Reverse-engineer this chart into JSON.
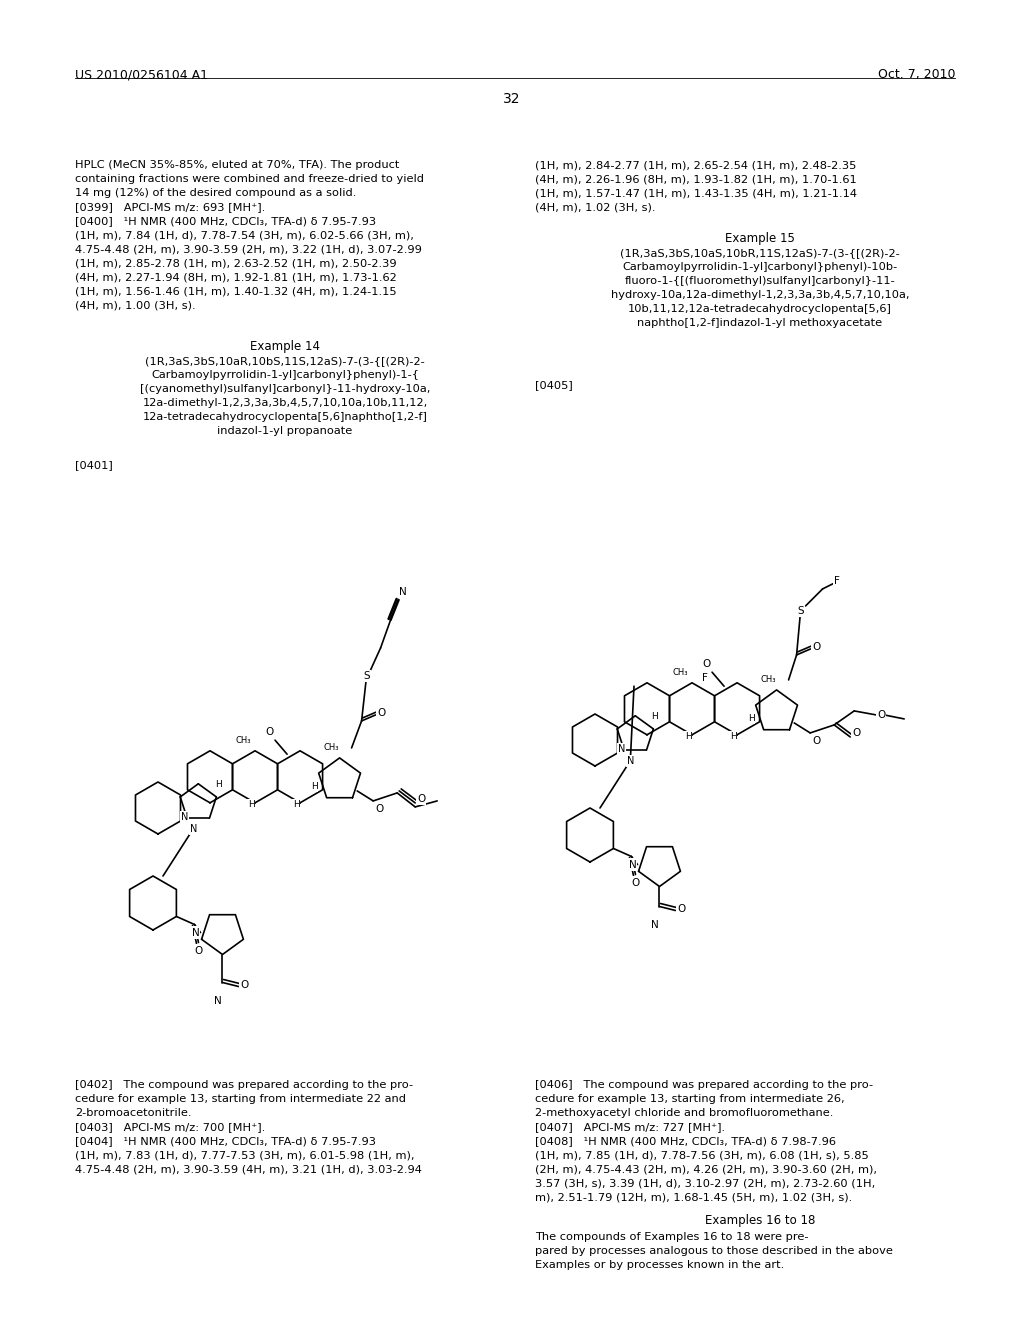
{
  "bg": "#ffffff",
  "header_left": "US 2010/0256104 A1",
  "header_right": "Oct. 7, 2010",
  "page_num": "32",
  "left_texts": [
    [
      75,
      160,
      "HPLC (MeCN 35%-85%, eluted at 70%, TFA). The product"
    ],
    [
      75,
      174,
      "containing fractions were combined and freeze-dried to yield"
    ],
    [
      75,
      188,
      "14 mg (12%) of the desired compound as a solid."
    ],
    [
      75,
      202,
      "[0399]   APCI-MS m/z: 693 [MH⁺]."
    ],
    [
      75,
      216,
      "[0400]   ¹H NMR (400 MHz, CDCl₃, TFA-d) δ 7.95-7.93"
    ],
    [
      75,
      230,
      "(1H, m), 7.84 (1H, d), 7.78-7.54 (3H, m), 6.02-5.66 (3H, m),"
    ],
    [
      75,
      244,
      "4.75-4.48 (2H, m), 3.90-3.59 (2H, m), 3.22 (1H, d), 3.07-2.99"
    ],
    [
      75,
      258,
      "(1H, m), 2.85-2.78 (1H, m), 2.63-2.52 (1H, m), 2.50-2.39"
    ],
    [
      75,
      272,
      "(4H, m), 2.27-1.94 (8H, m), 1.92-1.81 (1H, m), 1.73-1.62"
    ],
    [
      75,
      286,
      "(1H, m), 1.56-1.46 (1H, m), 1.40-1.32 (4H, m), 1.24-1.15"
    ],
    [
      75,
      300,
      "(4H, m), 1.00 (3H, s)."
    ]
  ],
  "right_texts": [
    [
      535,
      160,
      "(1H, m), 2.84-2.77 (1H, m), 2.65-2.54 (1H, m), 2.48-2.35"
    ],
    [
      535,
      174,
      "(4H, m), 2.26-1.96 (8H, m), 1.93-1.82 (1H, m), 1.70-1.61"
    ],
    [
      535,
      188,
      "(1H, m), 1.57-1.47 (1H, m), 1.43-1.35 (4H, m), 1.21-1.14"
    ],
    [
      535,
      202,
      "(4H, m), 1.02 (3H, s)."
    ]
  ],
  "bottom_left_texts": [
    [
      75,
      1080,
      "[0402]   The compound was prepared according to the pro-"
    ],
    [
      75,
      1094,
      "cedure for example 13, starting from intermediate 22 and"
    ],
    [
      75,
      1108,
      "2-bromoacetonitrile."
    ],
    [
      75,
      1122,
      "[0403]   APCI-MS m/z: 700 [MH⁺]."
    ],
    [
      75,
      1136,
      "[0404]   ¹H NMR (400 MHz, CDCl₃, TFA-d) δ 7.95-7.93"
    ],
    [
      75,
      1150,
      "(1H, m), 7.83 (1H, d), 7.77-7.53 (3H, m), 6.01-5.98 (1H, m),"
    ],
    [
      75,
      1164,
      "4.75-4.48 (2H, m), 3.90-3.59 (4H, m), 3.21 (1H, d), 3.03-2.94"
    ]
  ],
  "bottom_right_texts": [
    [
      535,
      1080,
      "[0406]   The compound was prepared according to the pro-"
    ],
    [
      535,
      1094,
      "cedure for example 13, starting from intermediate 26,"
    ],
    [
      535,
      1108,
      "2-methoxyacetyl chloride and bromofluoromethane."
    ],
    [
      535,
      1122,
      "[0407]   APCI-MS m/z: 727 [MH⁺]."
    ],
    [
      535,
      1136,
      "[0408]   ¹H NMR (400 MHz, CDCl₃, TFA-d) δ 7.98-7.96"
    ],
    [
      535,
      1150,
      "(1H, m), 7.85 (1H, d), 7.78-7.56 (3H, m), 6.08 (1H, s), 5.85"
    ],
    [
      535,
      1164,
      "(2H, m), 4.75-4.43 (2H, m), 4.26 (2H, m), 3.90-3.60 (2H, m),"
    ],
    [
      535,
      1178,
      "3.57 (3H, s), 3.39 (1H, d), 3.10-2.97 (2H, m), 2.73-2.60 (1H,"
    ],
    [
      535,
      1192,
      "m), 2.51-1.79 (12H, m), 1.68-1.45 (5H, m), 1.02 (3H, s)."
    ]
  ]
}
